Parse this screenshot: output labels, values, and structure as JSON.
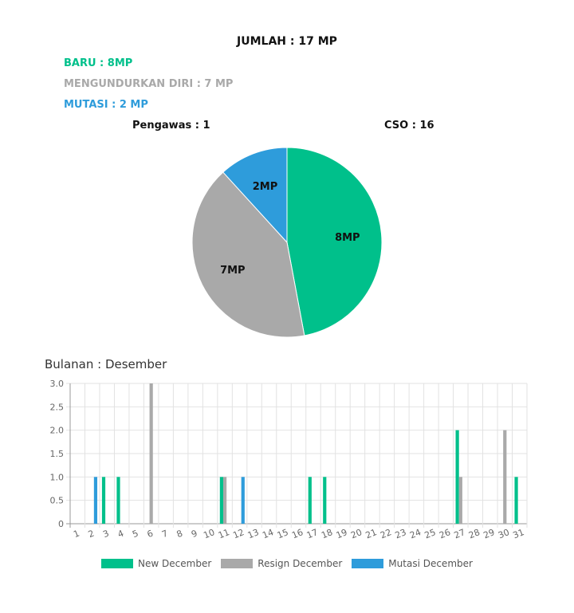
{
  "header": {
    "total": "JUMLAH : 17 MP",
    "baru": "BARU : 8MP",
    "resign": "MENGUNDURKAN DIRI : 7 MP",
    "mutasi": "MUTASI : 2 MP",
    "pengawas": "Pengawas : 1",
    "cso": "CSO : 16"
  },
  "colors": {
    "new": "#00c08b",
    "resign": "#a9a9a9",
    "mutasi": "#2e9cdb"
  },
  "chart_data": [
    {
      "type": "pie",
      "slices": [
        {
          "label": "8MP",
          "value": 8,
          "color": "#00c08b"
        },
        {
          "label": "7MP",
          "value": 7,
          "color": "#a9a9a9"
        },
        {
          "label": "2MP",
          "value": 2,
          "color": "#2e9cdb"
        }
      ]
    },
    {
      "type": "bar",
      "title": "Bulanan : Desember",
      "categories": [
        "1",
        "2",
        "3",
        "4",
        "5",
        "6",
        "7",
        "8",
        "9",
        "10",
        "11",
        "12",
        "13",
        "14",
        "15",
        "16",
        "17",
        "18",
        "19",
        "20",
        "21",
        "22",
        "23",
        "24",
        "25",
        "26",
        "27",
        "28",
        "29",
        "30",
        "31"
      ],
      "series": [
        {
          "name": "New December",
          "color": "#00c08b",
          "values": [
            0,
            0,
            1,
            1,
            0,
            0,
            0,
            0,
            0,
            0,
            1,
            0,
            0,
            0,
            0,
            0,
            1,
            1,
            0,
            0,
            0,
            0,
            0,
            0,
            0,
            0,
            2,
            0,
            0,
            0,
            1
          ]
        },
        {
          "name": "Resign December",
          "color": "#a9a9a9",
          "values": [
            0,
            0,
            0,
            0,
            0,
            3,
            0,
            0,
            0,
            0,
            1,
            0,
            0,
            0,
            0,
            0,
            0,
            0,
            0,
            0,
            0,
            0,
            0,
            0,
            0,
            0,
            1,
            0,
            0,
            2,
            0
          ]
        },
        {
          "name": "Mutasi December",
          "color": "#2e9cdb",
          "values": [
            0,
            1,
            0,
            0,
            0,
            0,
            0,
            0,
            0,
            0,
            0,
            1,
            0,
            0,
            0,
            0,
            0,
            0,
            0,
            0,
            0,
            0,
            0,
            0,
            0,
            0,
            0,
            0,
            0,
            0,
            0
          ]
        }
      ],
      "ylim": [
        0,
        3
      ],
      "yticks": [
        "0",
        "0.5",
        "1.0",
        "1.5",
        "2.0",
        "2.5",
        "3.0"
      ],
      "grid": true,
      "legend": "bottom"
    }
  ]
}
